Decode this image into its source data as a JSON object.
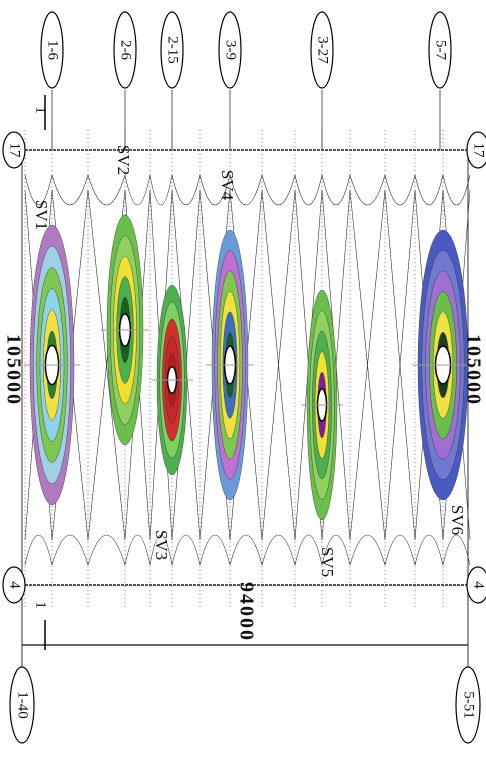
{
  "column_labels_top": [
    "1-6",
    "2-6",
    "2-15",
    "3-9",
    "3-27",
    "5-7"
  ],
  "column_labels_bottom": [
    "1-40",
    "5-51"
  ],
  "row_labels_left": [
    "17",
    "4"
  ],
  "row_labels_right": [
    "17",
    "4"
  ],
  "section_marks": [
    "1",
    "1"
  ],
  "members": [
    "SV1",
    "SV2",
    "SV3",
    "SV4",
    "SV5",
    "SV6"
  ],
  "dimensions": {
    "left": "105000",
    "right": "105000",
    "bottom": "94000"
  }
}
